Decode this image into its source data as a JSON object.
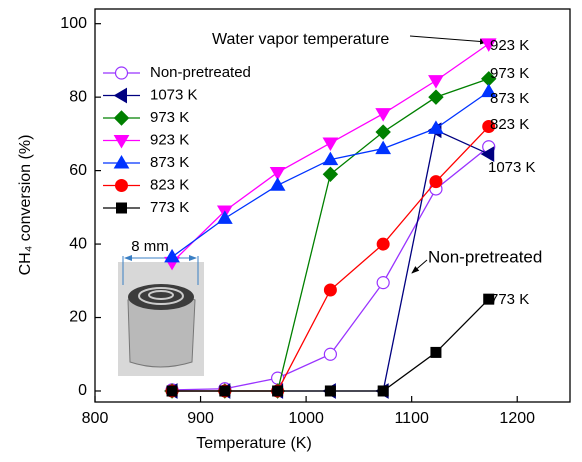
{
  "chart_data": {
    "type": "line",
    "x_label": "Temperature (K)",
    "y_label": "CH₄ conversion (%)",
    "x": [
      873,
      923,
      973,
      1023,
      1073,
      1123,
      1173
    ],
    "xlim": [
      800,
      1250
    ],
    "xticks": [
      800,
      900,
      1000,
      1100,
      1200
    ],
    "ylim": [
      -3,
      104
    ],
    "yticks": [
      0,
      20,
      40,
      60,
      80,
      100
    ],
    "legend": "upper left",
    "series": [
      {
        "name": "Non-pretreated",
        "color": "#9933ff",
        "marker": "circle-open",
        "values": [
          0.3,
          0.6,
          3.5,
          10,
          29.5,
          55,
          66.5
        ]
      },
      {
        "name": "1073 K",
        "color": "#000080",
        "marker": "triangle-left",
        "values": [
          0,
          0,
          0,
          0,
          0,
          71,
          64.5
        ]
      },
      {
        "name": "973 K",
        "color": "#008000",
        "marker": "diamond",
        "values": [
          0,
          0,
          0,
          59,
          70.5,
          80,
          85
        ]
      },
      {
        "name": "923 K",
        "color": "#ff00ff",
        "marker": "triangle-down",
        "values": [
          35,
          49,
          59.5,
          67.5,
          75.5,
          84.5,
          94.5
        ]
      },
      {
        "name": "873 K",
        "color": "#0033ff",
        "marker": "triangle-up",
        "values": [
          36.5,
          47,
          56,
          63,
          66,
          71.5,
          81.5
        ]
      },
      {
        "name": "823 K",
        "color": "#ff0000",
        "marker": "circle",
        "values": [
          0,
          0,
          0,
          27.5,
          40,
          57,
          72
        ]
      },
      {
        "name": "773 K",
        "color": "#000000",
        "marker": "square",
        "values": [
          0,
          0,
          0,
          0,
          0,
          10.5,
          25
        ]
      }
    ],
    "annotations": [
      "Water vapor temperature",
      "923 K",
      "973 K",
      "873 K",
      "823 K",
      "1073 K",
      "Non-pretreated",
      "773 K",
      "8 mm"
    ]
  }
}
